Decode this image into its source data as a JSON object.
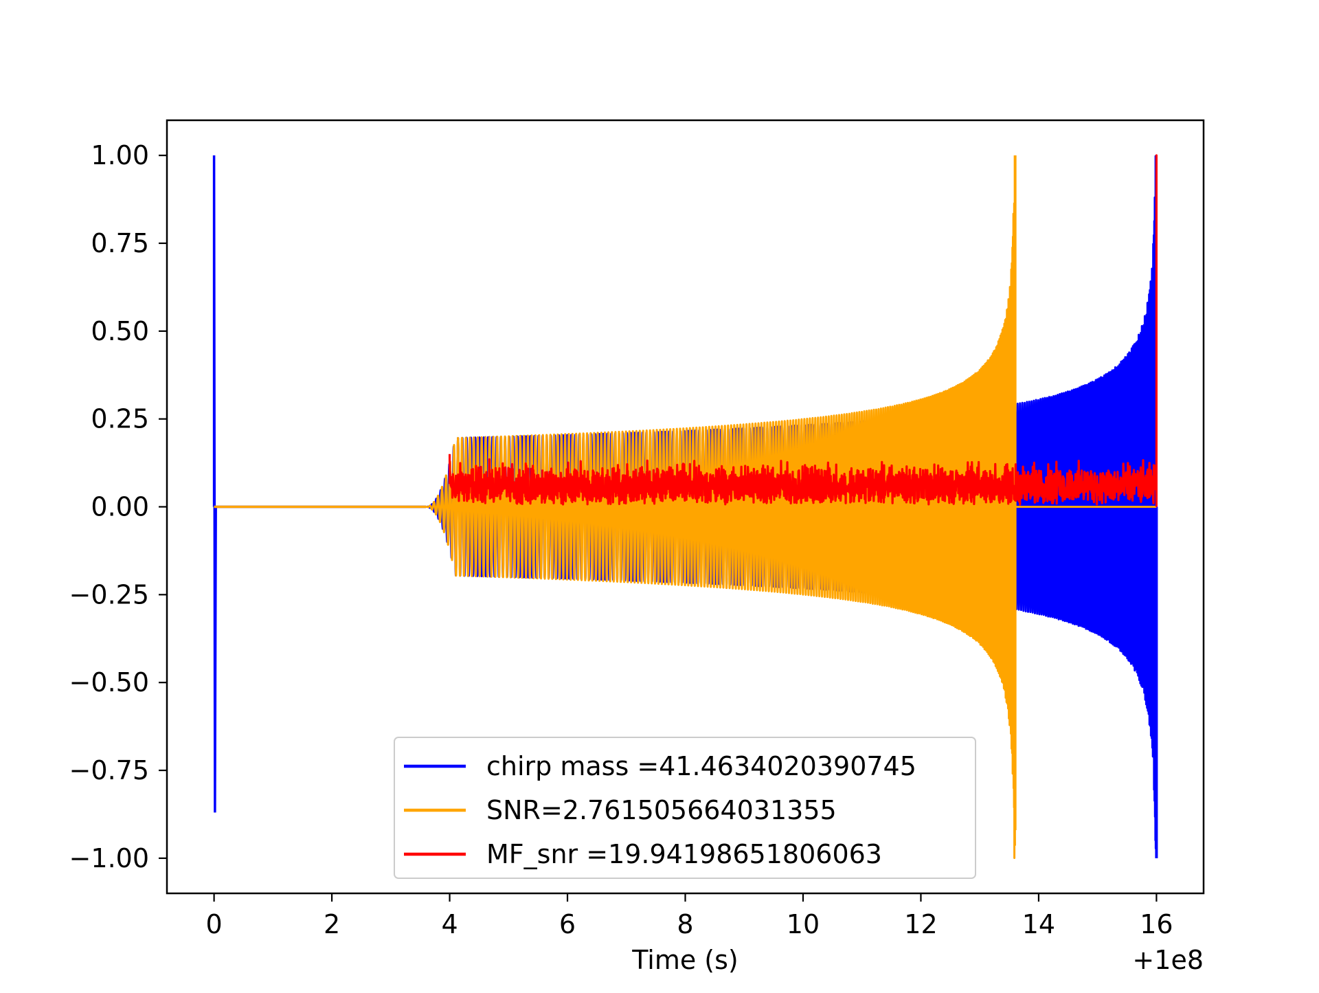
{
  "chart_data": {
    "type": "line",
    "title": "",
    "xlabel": "Time (s)",
    "ylabel": "",
    "x_offset_text": "+1e8",
    "xlim": [
      -0.8,
      16.8
    ],
    "ylim": [
      -1.1,
      1.1
    ],
    "x_ticks": [
      0,
      2,
      4,
      6,
      8,
      10,
      12,
      14,
      16
    ],
    "x_tick_labels": [
      "0",
      "2",
      "4",
      "6",
      "8",
      "10",
      "12",
      "14",
      "16"
    ],
    "y_ticks": [
      1.0,
      0.75,
      0.5,
      0.25,
      0.0,
      -0.25,
      -0.5,
      -0.75,
      -1.0
    ],
    "y_tick_labels": [
      "1.00",
      "0.75",
      "0.50",
      "0.25",
      "0.00",
      "−0.25",
      "−0.50",
      "−0.75",
      "−1.00"
    ],
    "grid": false,
    "legend_position": "lower-center",
    "series": [
      {
        "name": "chirp mass =41.4634020390745",
        "color": "#0000ff",
        "description_points": {
          "spike_at_x": 0.0,
          "spike_max": 1.0,
          "spike_min": -0.87,
          "chirp_start_x": 3.6,
          "chirp_end_x": 16.0,
          "envelope_at_4": 0.17,
          "envelope_at_10": 0.2,
          "envelope_at_14": 0.26,
          "envelope_at_15.5": 0.4,
          "max_at_16": 1.0,
          "min_at_16": -1.0
        }
      },
      {
        "name": "SNR=2.761505664031355",
        "color": "#ffa500",
        "description_points": {
          "chirp_start_x": 3.6,
          "chirp_end_x": 13.6,
          "envelope_at_4": 0.17,
          "envelope_at_10": 0.22,
          "envelope_at_12.5": 0.35,
          "max_at_13.6": 1.0,
          "min_at_13.6": -0.92
        }
      },
      {
        "name": "MF_snr =19.94198651806063",
        "color": "#ff0000",
        "description_points": {
          "noise_start_x": 4.0,
          "noise_end_x": 16.0,
          "noise_min": 0.0,
          "noise_typical_max": 0.15,
          "peak_at_16": 1.0
        }
      }
    ]
  }
}
